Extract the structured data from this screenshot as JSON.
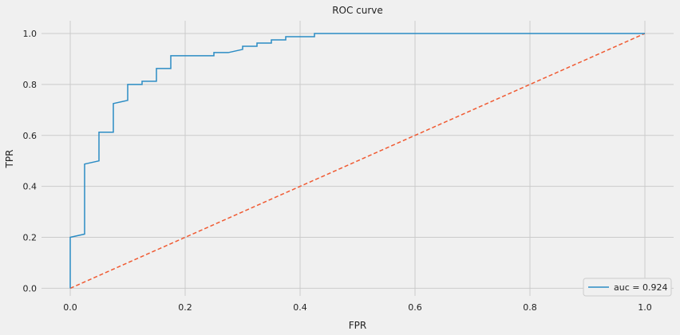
{
  "colors": {
    "background": "#f0f0f0",
    "grid": "#cbcbcb",
    "roc_line": "#2b8cc4",
    "diagonal_line": "#f05a32",
    "legend_border": "#cccccc"
  },
  "chart_data": {
    "type": "line",
    "title": "ROC curve",
    "xlabel": "FPR",
    "ylabel": "TPR",
    "xlim": [
      -0.05,
      1.05
    ],
    "ylim": [
      -0.03,
      1.05
    ],
    "grid": true,
    "legend_placement": "lower-right",
    "x_ticks": [
      0.0,
      0.2,
      0.4,
      0.6,
      0.8,
      1.0
    ],
    "x_tick_labels": [
      "0.0",
      "0.2",
      "0.4",
      "0.6",
      "0.8",
      "1.0"
    ],
    "y_ticks": [
      0.0,
      0.2,
      0.4,
      0.6,
      0.8,
      1.0
    ],
    "y_tick_labels": [
      "0.0",
      "0.2",
      "0.4",
      "0.6",
      "0.8",
      "1.0"
    ],
    "series": [
      {
        "name": "auc = 0.924",
        "style": "solid",
        "points": [
          [
            0.0,
            0.0
          ],
          [
            0.0,
            0.2
          ],
          [
            0.025,
            0.2125
          ],
          [
            0.025,
            0.4875
          ],
          [
            0.05,
            0.5
          ],
          [
            0.05,
            0.6125
          ],
          [
            0.075,
            0.6125
          ],
          [
            0.075,
            0.725
          ],
          [
            0.1,
            0.7375
          ],
          [
            0.1,
            0.8
          ],
          [
            0.125,
            0.8
          ],
          [
            0.125,
            0.8125
          ],
          [
            0.15,
            0.8125
          ],
          [
            0.15,
            0.8625
          ],
          [
            0.175,
            0.8625
          ],
          [
            0.175,
            0.9125
          ],
          [
            0.25,
            0.9125
          ],
          [
            0.25,
            0.925
          ],
          [
            0.275,
            0.925
          ],
          [
            0.3,
            0.9375
          ],
          [
            0.3,
            0.95
          ],
          [
            0.325,
            0.95
          ],
          [
            0.325,
            0.9625
          ],
          [
            0.35,
            0.9625
          ],
          [
            0.35,
            0.975
          ],
          [
            0.375,
            0.975
          ],
          [
            0.375,
            0.9875
          ],
          [
            0.425,
            0.9875
          ],
          [
            0.425,
            1.0
          ],
          [
            1.0,
            1.0
          ]
        ]
      },
      {
        "style": "dashed",
        "points": [
          [
            0.0,
            0.0
          ],
          [
            1.0,
            1.0
          ]
        ]
      }
    ]
  }
}
